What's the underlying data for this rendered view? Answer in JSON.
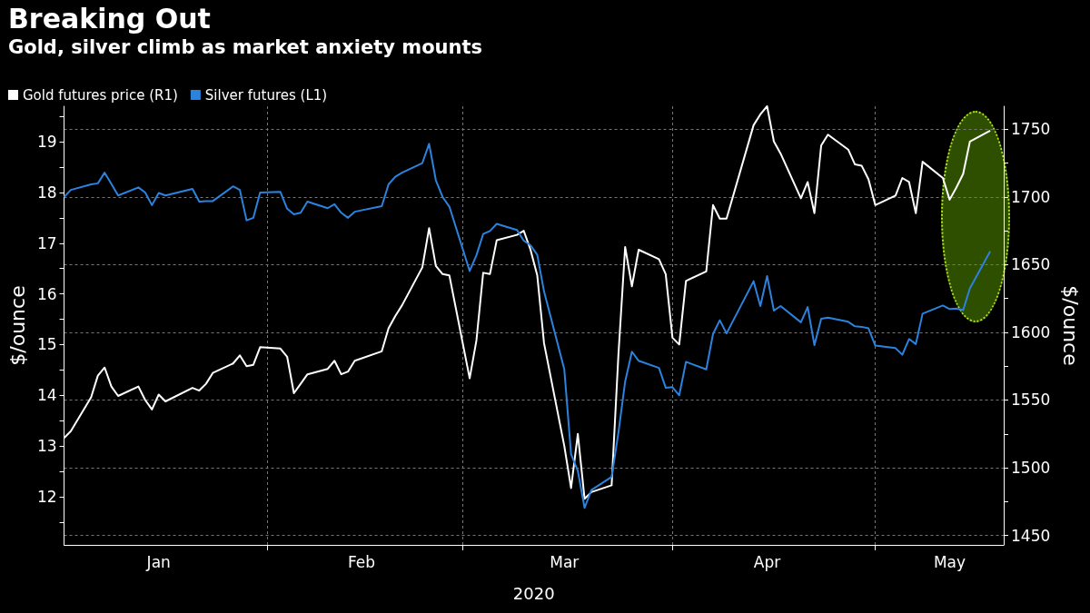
{
  "chart_data": {
    "type": "line",
    "title": "Breaking Out",
    "subtitle": "Gold, silver climb as market anxiety mounts",
    "xlabel": "2020",
    "ylabel": "$/ounce",
    "y2label": "$/ounce",
    "x": [
      "2020-01-02",
      "2020-01-03",
      "2020-01-06",
      "2020-01-07",
      "2020-01-08",
      "2020-01-09",
      "2020-01-10",
      "2020-01-13",
      "2020-01-14",
      "2020-01-15",
      "2020-01-16",
      "2020-01-17",
      "2020-01-21",
      "2020-01-22",
      "2020-01-23",
      "2020-01-24",
      "2020-01-27",
      "2020-01-28",
      "2020-01-29",
      "2020-01-30",
      "2020-01-31",
      "2020-02-03",
      "2020-02-04",
      "2020-02-05",
      "2020-02-06",
      "2020-02-07",
      "2020-02-10",
      "2020-02-11",
      "2020-02-12",
      "2020-02-13",
      "2020-02-14",
      "2020-02-18",
      "2020-02-19",
      "2020-02-20",
      "2020-02-21",
      "2020-02-24",
      "2020-02-25",
      "2020-02-26",
      "2020-02-27",
      "2020-02-28",
      "2020-03-02",
      "2020-03-03",
      "2020-03-04",
      "2020-03-05",
      "2020-03-06",
      "2020-03-09",
      "2020-03-10",
      "2020-03-11",
      "2020-03-12",
      "2020-03-13",
      "2020-03-16",
      "2020-03-17",
      "2020-03-18",
      "2020-03-19",
      "2020-03-20",
      "2020-03-23",
      "2020-03-24",
      "2020-03-25",
      "2020-03-26",
      "2020-03-27",
      "2020-03-30",
      "2020-03-31",
      "2020-04-01",
      "2020-04-02",
      "2020-04-03",
      "2020-04-06",
      "2020-04-07",
      "2020-04-08",
      "2020-04-09",
      "2020-04-13",
      "2020-04-14",
      "2020-04-15",
      "2020-04-16",
      "2020-04-17",
      "2020-04-20",
      "2020-04-21",
      "2020-04-22",
      "2020-04-23",
      "2020-04-24",
      "2020-04-27",
      "2020-04-28",
      "2020-04-29",
      "2020-04-30",
      "2020-05-01",
      "2020-05-04",
      "2020-05-05",
      "2020-05-06",
      "2020-05-07",
      "2020-05-08",
      "2020-05-11",
      "2020-05-12",
      "2020-05-13",
      "2020-05-14",
      "2020-05-15",
      "2020-05-18"
    ],
    "series": [
      {
        "name": "Gold futures price (R1)",
        "color": "#ffffff",
        "axis": "y2",
        "values": [
          1522,
          1527,
          1552,
          1568,
          1574,
          1560,
          1553,
          1560,
          1550,
          1543,
          1554,
          1549,
          1559,
          1557,
          1562,
          1570,
          1577,
          1583,
          1575,
          1576,
          1589,
          1588,
          1582,
          1555,
          1562,
          1569,
          1573,
          1579,
          1569,
          1571,
          1579,
          1586,
          1603,
          1612,
          1620,
          1648,
          1677,
          1649,
          1643,
          1642,
          1566,
          1594,
          1644,
          1643,
          1668,
          1672,
          1675,
          1661,
          1642,
          1592,
          1516,
          1485,
          1525,
          1477,
          1482,
          1487,
          1583,
          1663,
          1634,
          1661,
          1654,
          1643,
          1596,
          1591,
          1638,
          1645,
          1694,
          1684,
          1684,
          1753,
          1761,
          1767,
          1741,
          1732,
          1699,
          1711,
          1688,
          1738,
          1746,
          1735,
          1724,
          1723,
          1713,
          1694,
          1701,
          1714,
          1711,
          1688,
          1726,
          1714,
          1698,
          1707,
          1717,
          1741,
          1749
        ]
      },
      {
        "name": "Silver futures (L1)",
        "color": "#2b83de",
        "axis": "y",
        "values": [
          17.91,
          18.05,
          18.16,
          18.18,
          18.39,
          18.17,
          17.94,
          18.1,
          18.0,
          17.75,
          17.99,
          17.94,
          18.07,
          17.82,
          17.83,
          17.83,
          18.12,
          18.05,
          17.45,
          17.5,
          18.0,
          18.01,
          17.68,
          17.57,
          17.6,
          17.82,
          17.69,
          17.77,
          17.6,
          17.5,
          17.62,
          17.73,
          18.16,
          18.31,
          18.39,
          18.58,
          18.96,
          18.24,
          17.91,
          17.72,
          16.45,
          16.76,
          17.18,
          17.24,
          17.38,
          17.26,
          17.05,
          16.96,
          16.77,
          16.05,
          14.51,
          12.84,
          12.51,
          11.78,
          12.13,
          12.39,
          13.26,
          14.27,
          14.86,
          14.68,
          14.54,
          14.15,
          14.16,
          14.0,
          14.66,
          14.51,
          15.21,
          15.48,
          15.22,
          16.25,
          15.76,
          16.35,
          15.67,
          15.76,
          15.44,
          15.74,
          14.99,
          15.51,
          15.53,
          15.45,
          15.36,
          15.35,
          15.32,
          14.98,
          14.93,
          14.8,
          15.11,
          15.01,
          15.61,
          15.77,
          15.7,
          15.71,
          15.68,
          16.11,
          16.84
        ]
      }
    ],
    "xlim": [
      "2020-01-02",
      "2020-05-20"
    ],
    "xticks": [
      {
        "value": "2020-01-16",
        "label": "Jan"
      },
      {
        "value": "2020-02-01",
        "label": null
      },
      {
        "value": "2020-02-15",
        "label": "Feb"
      },
      {
        "value": "2020-03-01",
        "label": null
      },
      {
        "value": "2020-03-16",
        "label": "Mar"
      },
      {
        "value": "2020-04-01",
        "label": null
      },
      {
        "value": "2020-04-15",
        "label": "Apr"
      },
      {
        "value": "2020-05-01",
        "label": null
      },
      {
        "value": "2020-05-12",
        "label": "May"
      }
    ],
    "ylim": [
      11.05,
      19.7
    ],
    "yticks": [
      {
        "value": 11.5,
        "label": null
      },
      12,
      {
        "value": 12.5,
        "label": null
      },
      13,
      {
        "value": 13.5,
        "label": null
      },
      14,
      {
        "value": 14.5,
        "label": null
      },
      15,
      {
        "value": 15.5,
        "label": null
      },
      16,
      {
        "value": 16.5,
        "label": null
      },
      17,
      {
        "value": 17.5,
        "label": null
      },
      18,
      {
        "value": 18.5,
        "label": null
      },
      19,
      {
        "value": 19.5,
        "label": null
      }
    ],
    "y2lim": [
      1443,
      1767
    ],
    "y2ticks": [
      1450,
      {
        "value": 1475,
        "label": null
      },
      1500,
      {
        "value": 1525,
        "label": null
      },
      1550,
      {
        "value": 1575,
        "label": null
      },
      1600,
      {
        "value": 1625,
        "label": null
      },
      1650,
      {
        "value": 1675,
        "label": null
      },
      1700,
      {
        "value": 1725,
        "label": null
      },
      1750
    ],
    "grid": true,
    "legend": "top left",
    "marker": "none",
    "line_style": "solid"
  }
}
